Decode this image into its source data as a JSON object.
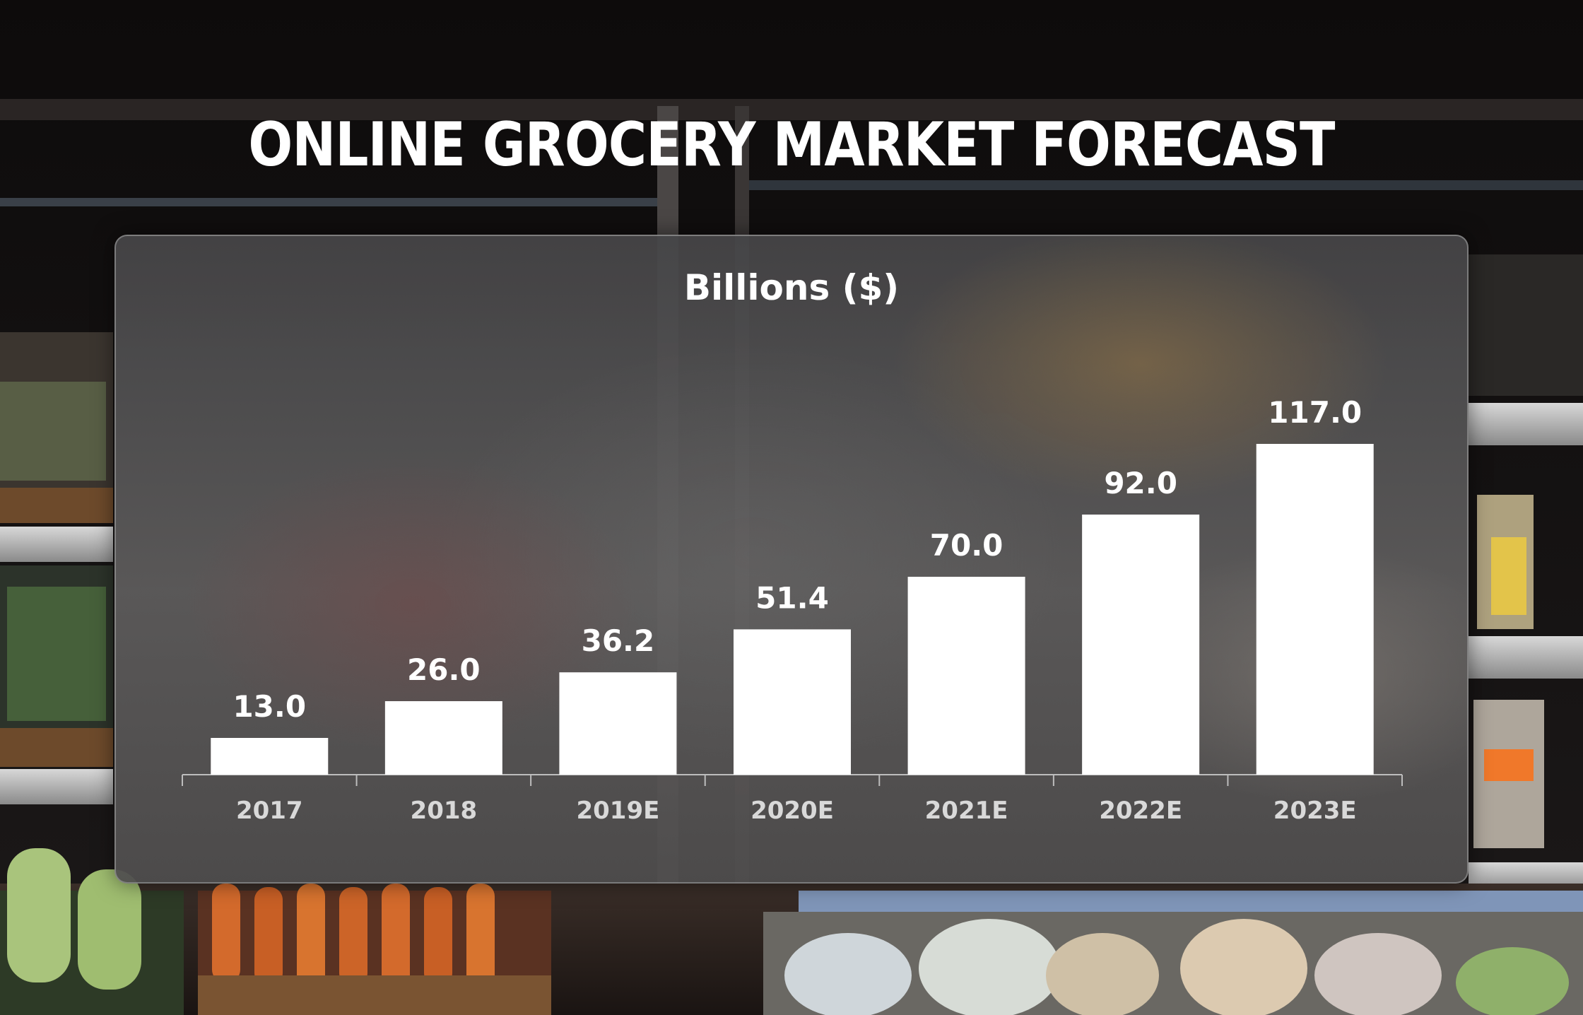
{
  "colors": {
    "bar": "#ffffff",
    "value_label": "#ffffff",
    "tick_label": "#d9d9d9",
    "axis": "#bdbdbd"
  },
  "chart_data": {
    "type": "bar",
    "title": "ONLINE GROCERY MARKET FORECAST",
    "subtitle": "Billions ($)",
    "xlabel": "",
    "ylabel": "",
    "categories": [
      "2017",
      "2018",
      "2019E",
      "2020E",
      "2021E",
      "2022E",
      "2023E"
    ],
    "values": [
      13.0,
      26.0,
      36.2,
      51.4,
      70.0,
      92.0,
      117.0
    ],
    "value_labels": [
      "13.0",
      "26.0",
      "36.2",
      "51.4",
      "70.0",
      "92.0",
      "117.0"
    ],
    "ylim": [
      0,
      117
    ],
    "grid": false,
    "legend": "none"
  }
}
